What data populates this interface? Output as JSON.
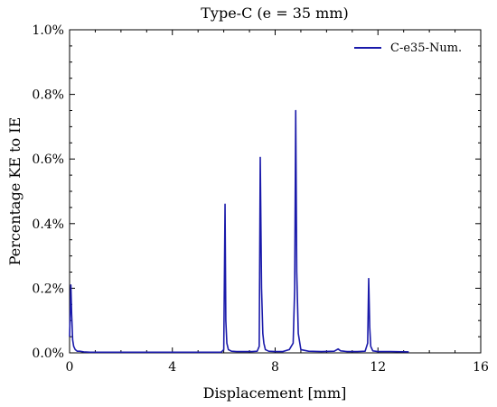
{
  "chart_data": {
    "type": "line",
    "title": "Type-C (e = 35 mm)",
    "xlabel": "Displacement [mm]",
    "ylabel": "Percentage KE to IE",
    "xlim": [
      0,
      16
    ],
    "ylim": [
      0,
      1.0
    ],
    "x_ticks": [
      0,
      4,
      8,
      12,
      16
    ],
    "y_ticks": [
      0.0,
      0.2,
      0.4,
      0.6,
      0.8,
      1.0
    ],
    "y_tick_labels": [
      "0.0%",
      "0.2%",
      "0.4%",
      "0.6%",
      "0.8%",
      "1.0%"
    ],
    "grid": false,
    "legend_position": "top-right",
    "series": [
      {
        "name": "C-e35-Num.",
        "color": "#1a1aaa",
        "x": [
          0,
          0.05,
          0.08,
          0.12,
          0.16,
          0.22,
          0.3,
          0.4,
          0.55,
          0.8,
          1.2,
          2.0,
          3.0,
          4.0,
          5.0,
          5.9,
          6.0,
          6.05,
          6.08,
          6.12,
          6.18,
          6.3,
          6.5,
          6.7,
          6.9,
          7.1,
          7.3,
          7.38,
          7.42,
          7.47,
          7.52,
          7.56,
          7.62,
          7.75,
          8.0,
          8.3,
          8.55,
          8.7,
          8.76,
          8.8,
          8.84,
          8.9,
          9.0,
          9.3,
          9.8,
          10.3,
          10.45,
          10.55,
          10.8,
          11.2,
          11.5,
          11.6,
          11.64,
          11.68,
          11.72,
          11.8,
          12.0,
          12.5,
          13.2
        ],
        "y": [
          0.05,
          0.21,
          0.12,
          0.04,
          0.02,
          0.01,
          0.005,
          0.005,
          0.003,
          0.002,
          0.002,
          0.002,
          0.002,
          0.002,
          0.002,
          0.002,
          0.01,
          0.46,
          0.1,
          0.03,
          0.01,
          0.005,
          0.004,
          0.004,
          0.004,
          0.004,
          0.005,
          0.02,
          0.605,
          0.2,
          0.06,
          0.03,
          0.01,
          0.005,
          0.004,
          0.004,
          0.01,
          0.03,
          0.2,
          0.75,
          0.25,
          0.06,
          0.01,
          0.005,
          0.004,
          0.005,
          0.012,
          0.006,
          0.004,
          0.004,
          0.005,
          0.03,
          0.23,
          0.08,
          0.02,
          0.006,
          0.004,
          0.004,
          0.003
        ]
      }
    ]
  }
}
